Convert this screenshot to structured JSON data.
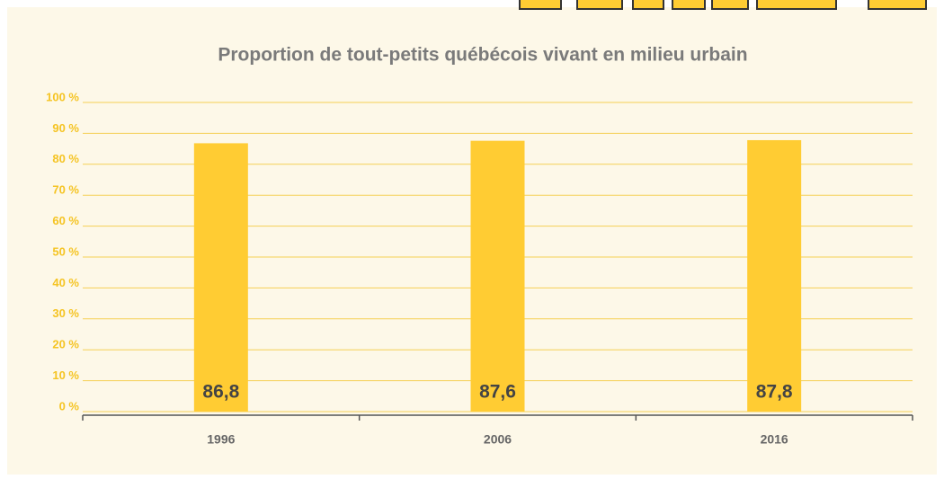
{
  "chart_data": {
    "type": "bar",
    "title": "Proportion de tout-petits québécois vivant en milieu urbain",
    "categories": [
      "1996",
      "2006",
      "2016"
    ],
    "values": [
      86.8,
      87.6,
      87.8
    ],
    "value_labels": [
      "86,8",
      "87,6",
      "87,8"
    ],
    "color": "#ffcc33",
    "ylim": [
      0,
      100
    ],
    "yticks": [
      {
        "value": 0,
        "label": "0 %"
      },
      {
        "value": 10,
        "label": "10 %"
      },
      {
        "value": 20,
        "label": "20 %"
      },
      {
        "value": 30,
        "label": "30 %"
      },
      {
        "value": 40,
        "label": "40 %"
      },
      {
        "value": 50,
        "label": "50 %"
      },
      {
        "value": 60,
        "label": "60 %"
      },
      {
        "value": 70,
        "label": "70 %"
      },
      {
        "value": 80,
        "label": "80 %"
      },
      {
        "value": 90,
        "label": "90 %"
      },
      {
        "value": 100,
        "label": "100 %"
      }
    ],
    "grid": true
  }
}
